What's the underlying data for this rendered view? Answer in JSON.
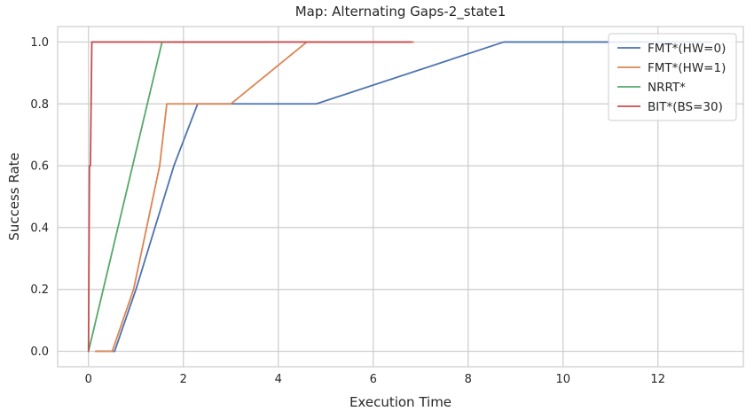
{
  "chart_data": {
    "type": "line",
    "title": "Map: Alternating Gaps-2_state1",
    "xlabel": "Execution Time",
    "ylabel": "Success Rate",
    "xlim": [
      -0.65,
      13.8
    ],
    "ylim": [
      -0.05,
      1.05
    ],
    "xticks": [
      0,
      2,
      4,
      6,
      8,
      10,
      12
    ],
    "yticks": [
      0.0,
      0.2,
      0.4,
      0.6,
      0.8,
      1.0
    ],
    "xtick_labels": [
      "0",
      "2",
      "4",
      "6",
      "8",
      "10",
      "12"
    ],
    "ytick_labels": [
      "0.0",
      "0.2",
      "0.4",
      "0.6",
      "0.8",
      "1.0"
    ],
    "grid": true,
    "legend_position": "top-right",
    "series": [
      {
        "name": "FMT*(HW=0)",
        "color": "#4c72b0",
        "x": [
          0.15,
          0.55,
          1.0,
          1.8,
          2.3,
          4.8,
          8.75,
          13.15
        ],
        "y": [
          0.0,
          0.0,
          0.2,
          0.6,
          0.8,
          0.8,
          1.0,
          1.0
        ]
      },
      {
        "name": "FMT*(HW=1)",
        "color": "#dd8452",
        "x": [
          0.15,
          0.5,
          0.95,
          1.5,
          1.65,
          3.0,
          4.6,
          6.85
        ],
        "y": [
          0.0,
          0.0,
          0.2,
          0.6,
          0.8,
          0.8,
          1.0,
          1.0
        ]
      },
      {
        "name": "NRRT*",
        "color": "#55a868",
        "x": [
          0.0,
          1.55,
          3.8
        ],
        "y": [
          0.0,
          1.0,
          1.0
        ]
      },
      {
        "name": "BIT*(BS=30)",
        "color": "#c44e52",
        "x": [
          0.0,
          0.02,
          0.04,
          0.07,
          0.1,
          0.5,
          3.5,
          6.8
        ],
        "y": [
          0.0,
          0.6,
          0.6,
          1.0,
          1.0,
          1.0,
          1.0,
          1.0
        ]
      }
    ]
  }
}
